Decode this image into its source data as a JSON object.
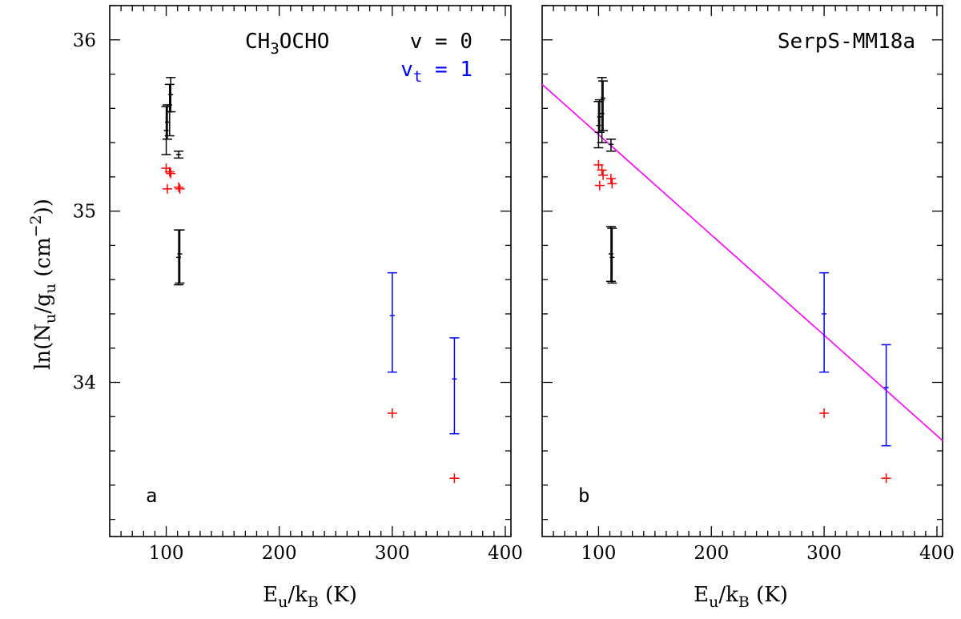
{
  "chart_data": {
    "type": "scatter",
    "figure": "Population diagram",
    "xlabel": {
      "main": "E",
      "sub1": "u",
      "mid": "/k",
      "sub2": "B",
      "tail": " (K)"
    },
    "ylabel": {
      "pre": "ln(N",
      "sub1": "u",
      "mid": "/g",
      "sub2": "u",
      "mid2": " (cm",
      "sup": "−2",
      "tail": "))"
    },
    "xlim": [
      50,
      405
    ],
    "ylim": [
      33.1,
      36.2
    ],
    "x_ticks": [
      100,
      200,
      300,
      400
    ],
    "y_ticks": [
      34,
      35,
      36
    ],
    "annotation": {
      "molecule": {
        "pre": "CH",
        "sub": "3",
        "post": "OCHO"
      },
      "state_ground": "v = 0",
      "state_torsional": {
        "pre": "v",
        "sub": "t",
        "post": " = 1"
      },
      "source": "SerpS-MM18a"
    },
    "colors": {
      "observed_v0": "#000000",
      "observed_vt1": "#0000ff",
      "model": "#ff0000",
      "fit": "#ff00ff"
    },
    "panels": [
      {
        "tag": "a",
        "series": [
          {
            "name": "observed v=0",
            "color_key": "observed_v0",
            "points": [
              {
                "x": 100,
                "y": 35.47,
                "lo": 35.33,
                "hi": 35.61
              },
              {
                "x": 101,
                "y": 35.52,
                "lo": 35.42,
                "hi": 35.62
              },
              {
                "x": 103,
                "y": 35.58,
                "lo": 35.44,
                "hi": 35.74
              },
              {
                "x": 104,
                "y": 35.68,
                "lo": 35.58,
                "hi": 35.78
              },
              {
                "x": 111,
                "y": 35.33,
                "lo": 35.31,
                "hi": 35.35
              },
              {
                "x": 111,
                "y": 34.73,
                "lo": 34.57,
                "hi": 34.89
              },
              {
                "x": 112,
                "y": 34.75,
                "lo": 34.58,
                "hi": 34.89
              }
            ]
          },
          {
            "name": "observed vt=1",
            "color_key": "observed_vt1",
            "points": [
              {
                "x": 300,
                "y": 34.39,
                "lo": 34.06,
                "hi": 34.64
              },
              {
                "x": 355,
                "y": 34.02,
                "lo": 33.7,
                "hi": 34.26
              }
            ]
          },
          {
            "name": "model",
            "color_key": "model",
            "points": [
              {
                "x": 100,
                "y": 35.25
              },
              {
                "x": 101,
                "y": 35.13
              },
              {
                "x": 103,
                "y": 35.23
              },
              {
                "x": 104,
                "y": 35.22
              },
              {
                "x": 111,
                "y": 35.14
              },
              {
                "x": 112,
                "y": 35.13
              },
              {
                "x": 300,
                "y": 33.82
              },
              {
                "x": 355,
                "y": 33.44
              }
            ]
          }
        ],
        "fit": null
      },
      {
        "tag": "b",
        "series": [
          {
            "name": "observed v=0",
            "color_key": "observed_v0",
            "points": [
              {
                "x": 100,
                "y": 35.5,
                "lo": 35.37,
                "hi": 35.64
              },
              {
                "x": 101,
                "y": 35.55,
                "lo": 35.46,
                "hi": 35.65
              },
              {
                "x": 103,
                "y": 35.57,
                "lo": 35.4,
                "hi": 35.78
              },
              {
                "x": 104,
                "y": 35.66,
                "lo": 35.47,
                "hi": 35.76
              },
              {
                "x": 111,
                "y": 35.39,
                "lo": 35.35,
                "hi": 35.42
              },
              {
                "x": 111,
                "y": 34.75,
                "lo": 34.59,
                "hi": 34.91
              },
              {
                "x": 112,
                "y": 34.73,
                "lo": 34.58,
                "hi": 34.9
              }
            ]
          },
          {
            "name": "observed vt=1",
            "color_key": "observed_vt1",
            "points": [
              {
                "x": 300,
                "y": 34.4,
                "lo": 34.06,
                "hi": 34.64
              },
              {
                "x": 355,
                "y": 33.97,
                "lo": 33.63,
                "hi": 34.22
              }
            ]
          },
          {
            "name": "model",
            "color_key": "model",
            "points": [
              {
                "x": 100,
                "y": 35.27
              },
              {
                "x": 101,
                "y": 35.15
              },
              {
                "x": 103,
                "y": 35.24
              },
              {
                "x": 104,
                "y": 35.21
              },
              {
                "x": 111,
                "y": 35.19
              },
              {
                "x": 112,
                "y": 35.16
              },
              {
                "x": 300,
                "y": 33.82
              },
              {
                "x": 355,
                "y": 33.44
              }
            ]
          }
        ],
        "fit": {
          "x": [
            50,
            405
          ],
          "y": [
            35.74,
            33.66
          ],
          "color_key": "fit"
        }
      }
    ]
  }
}
